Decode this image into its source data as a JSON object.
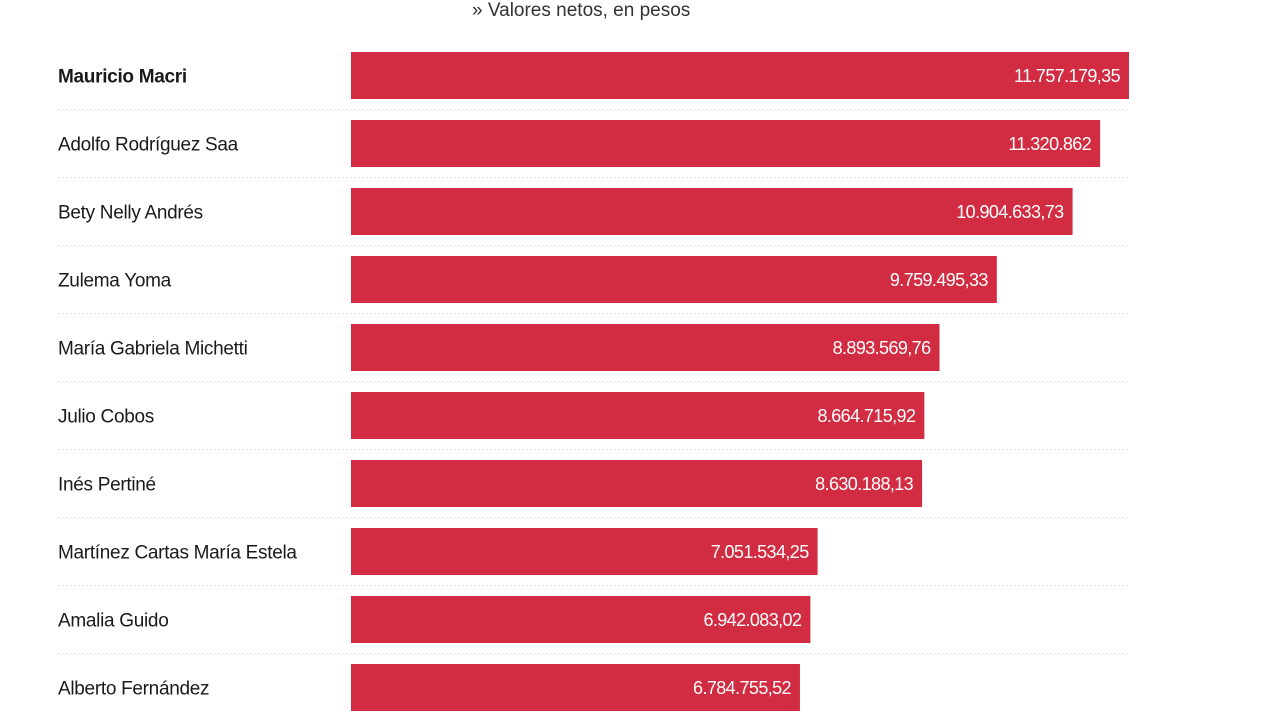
{
  "chart_data": {
    "type": "bar",
    "orientation": "horizontal",
    "subtitle": "Valores netos, en pesos",
    "subtitle_bullet": "»",
    "bar_color": "#d22c42",
    "highlight_category": "Mauricio Macri",
    "categories": [
      "Mauricio Macri",
      "Adolfo Rodríguez Saa",
      "Bety Nelly Andrés",
      "Zulema Yoma",
      "María Gabriela Michetti",
      "Julio Cobos",
      "Inés Pertiné",
      "Martínez Cartas María Estela",
      "Amalia Guido",
      "Alberto Fernández"
    ],
    "values": [
      11757179.35,
      11320862,
      10904633.73,
      9759495.33,
      8893569.76,
      8664715.92,
      8630188.13,
      7051534.25,
      6942083.02,
      6784755.52
    ],
    "value_labels": [
      "11.757.179,35",
      "11.320.862",
      "10.904.633,73",
      "9.759.495,33",
      "8.893.569,76",
      "8.664.715,92",
      "8.630.188,13",
      "7.051.534,25",
      "6.942.083,02",
      "6.784.755,52"
    ],
    "xlim": [
      0,
      11757179.35
    ],
    "grid": false,
    "legend": "none"
  }
}
